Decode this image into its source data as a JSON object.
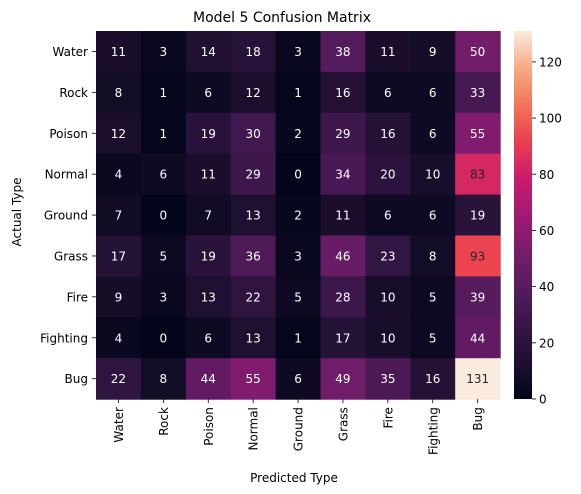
{
  "chart_data": {
    "type": "heatmap",
    "title": "Model 5 Confusion Matrix",
    "xlabel": "Predicted Type",
    "ylabel": "Actual Type",
    "x_categories": [
      "Water",
      "Rock",
      "Poison",
      "Normal",
      "Ground",
      "Grass",
      "Fire",
      "Fighting",
      "Bug"
    ],
    "y_categories": [
      "Water",
      "Rock",
      "Poison",
      "Normal",
      "Ground",
      "Grass",
      "Fire",
      "Fighting",
      "Bug"
    ],
    "values": [
      [
        11,
        3,
        14,
        18,
        3,
        38,
        11,
        9,
        50
      ],
      [
        8,
        1,
        6,
        12,
        1,
        16,
        6,
        6,
        33
      ],
      [
        12,
        1,
        19,
        30,
        2,
        29,
        16,
        6,
        55
      ],
      [
        4,
        6,
        11,
        29,
        0,
        34,
        20,
        10,
        83
      ],
      [
        7,
        0,
        7,
        13,
        2,
        11,
        6,
        6,
        19
      ],
      [
        17,
        5,
        19,
        36,
        3,
        46,
        23,
        8,
        93
      ],
      [
        9,
        3,
        13,
        22,
        5,
        28,
        10,
        5,
        39
      ],
      [
        4,
        0,
        6,
        13,
        1,
        17,
        10,
        5,
        44
      ],
      [
        22,
        8,
        44,
        55,
        6,
        49,
        35,
        16,
        131
      ]
    ],
    "colorbar": {
      "min": 0,
      "max": 131,
      "ticks": [
        0,
        20,
        40,
        60,
        80,
        100,
        120
      ],
      "colormap": "rocket"
    },
    "annotations": true
  }
}
